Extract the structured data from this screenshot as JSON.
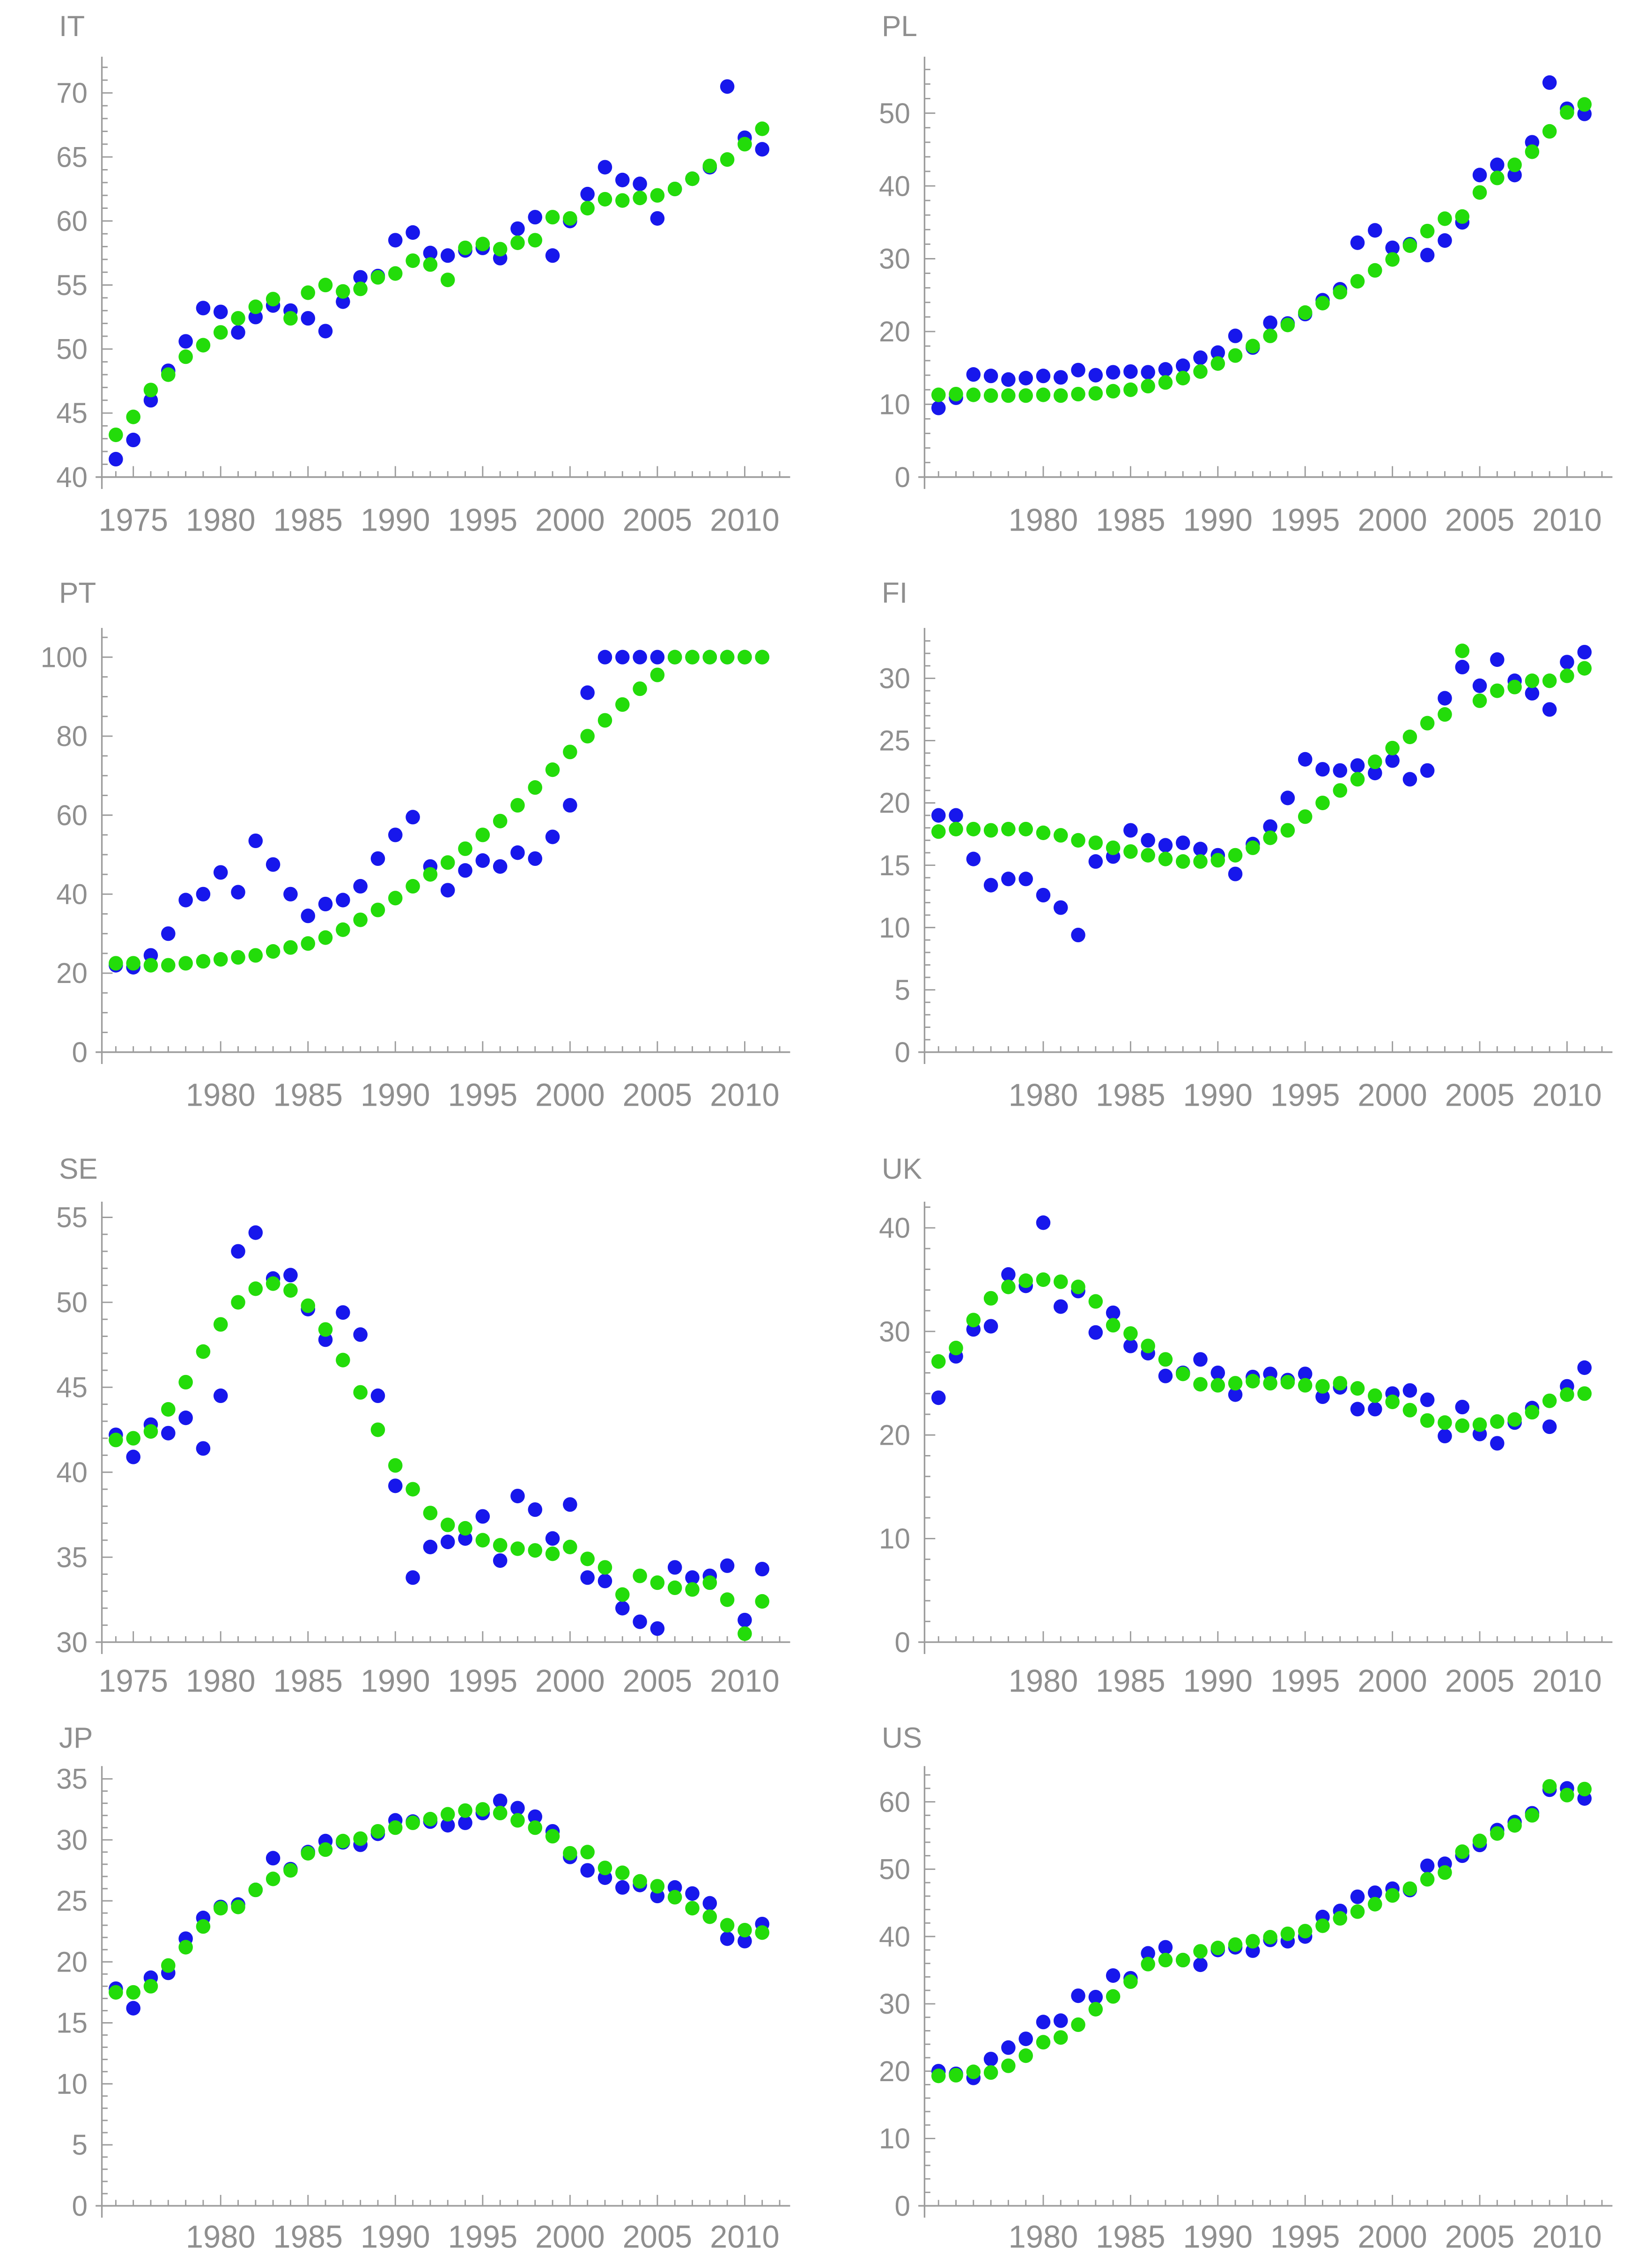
{
  "page": {
    "background": "#ffffff",
    "grid": "2x4 small-multiple scatter plots"
  },
  "colors": {
    "series_blue": "#1717ec",
    "series_green": "#23dc0a",
    "axis_line": "#9c9c9c",
    "tick_label": "#8f8f8f",
    "title": "#8f8f8f"
  },
  "x_years_start": 1974,
  "x_years_end": 2011,
  "chart_data": [
    {
      "type": "scatter",
      "title": "IT",
      "ylim": [
        40,
        72.4
      ],
      "yticks": [
        40,
        45,
        50,
        55,
        60,
        65,
        70
      ],
      "y_minor_step": 1,
      "xlim": [
        1973.2,
        2012.6
      ],
      "xtick_labels": [
        1975,
        1980,
        1985,
        1990,
        1995,
        2000,
        2005,
        2010
      ],
      "legend": "none",
      "grid_lines": "off",
      "series": [
        {
          "name": "blue",
          "color_key": "series_blue",
          "values": [
            41.4,
            42.9,
            46.0,
            48.3,
            50.6,
            53.2,
            52.9,
            51.3,
            52.5,
            53.4,
            53.0,
            52.4,
            51.4,
            53.7,
            55.6,
            55.7,
            58.5,
            59.1,
            57.5,
            57.3,
            57.7,
            57.9,
            57.1,
            59.4,
            60.3,
            57.3,
            60.0,
            62.1,
            64.2,
            63.2,
            62.9,
            60.2,
            62.5,
            63.3,
            64.2,
            70.5,
            66.5,
            65.6
          ]
        },
        {
          "name": "green",
          "color_key": "series_green",
          "values": [
            43.3,
            44.7,
            46.8,
            48.0,
            49.4,
            50.3,
            51.3,
            52.4,
            53.3,
            53.9,
            52.4,
            54.4,
            55.0,
            54.5,
            54.7,
            55.6,
            55.9,
            56.9,
            56.6,
            55.4,
            57.9,
            58.2,
            57.8,
            58.3,
            58.5,
            60.3,
            60.2,
            61.0,
            61.7,
            61.6,
            61.8,
            62.0,
            62.5,
            63.3,
            64.3,
            64.8,
            66.0,
            67.2
          ]
        }
      ]
    },
    {
      "type": "scatter",
      "title": "PL",
      "ylim": [
        0,
        57
      ],
      "yticks": [
        0,
        10,
        20,
        30,
        40,
        50
      ],
      "y_minor_step": 2,
      "xlim": [
        1973.2,
        2012.6
      ],
      "xtick_labels": [
        1980,
        1985,
        1990,
        1995,
        2000,
        2005,
        2010
      ],
      "legend": "none",
      "grid_lines": "off",
      "series": [
        {
          "name": "blue",
          "color_key": "series_blue",
          "values": [
            9.5,
            10.9,
            14.1,
            13.9,
            13.4,
            13.6,
            13.9,
            13.7,
            14.7,
            14.0,
            14.4,
            14.5,
            14.4,
            14.8,
            15.3,
            16.4,
            17.1,
            19.4,
            17.8,
            21.2,
            21.1,
            22.4,
            24.3,
            25.8,
            32.2,
            33.9,
            31.5,
            32.0,
            30.5,
            32.5,
            35.0,
            41.5,
            42.9,
            41.5,
            46.0,
            54.2,
            50.6,
            49.9
          ]
        },
        {
          "name": "green",
          "color_key": "series_green",
          "values": [
            11.3,
            11.4,
            11.3,
            11.2,
            11.2,
            11.2,
            11.3,
            11.2,
            11.4,
            11.5,
            11.8,
            12.0,
            12.5,
            13.0,
            13.6,
            14.5,
            15.6,
            16.7,
            18.0,
            19.4,
            20.9,
            22.6,
            23.9,
            25.4,
            26.9,
            28.4,
            29.9,
            31.8,
            33.8,
            35.5,
            35.8,
            39.1,
            41.1,
            42.9,
            44.7,
            47.5,
            50.1,
            51.2
          ]
        }
      ]
    },
    {
      "type": "scatter",
      "title": "PT",
      "ylim": [
        0,
        106
      ],
      "yticks": [
        0,
        20,
        40,
        60,
        80,
        100
      ],
      "y_minor_step": 5,
      "xlim": [
        1973.2,
        2012.6
      ],
      "xtick_labels": [
        1980,
        1985,
        1990,
        1995,
        2000,
        2005,
        2010
      ],
      "legend": "none",
      "grid_lines": "off",
      "series": [
        {
          "name": "blue",
          "color_key": "series_blue",
          "values": [
            22.0,
            21.5,
            24.5,
            30.0,
            38.5,
            40.0,
            45.5,
            40.5,
            53.5,
            47.5,
            40.0,
            34.5,
            37.5,
            38.5,
            42.0,
            49.0,
            55.0,
            59.5,
            47.0,
            41.0,
            46.0,
            48.5,
            47.0,
            50.5,
            49.0,
            54.5,
            62.5,
            91.0,
            100,
            100,
            100,
            100,
            100,
            100,
            100,
            100,
            100,
            100
          ]
        },
        {
          "name": "green",
          "color_key": "series_green",
          "values": [
            22.5,
            22.5,
            22.0,
            22.0,
            22.5,
            23.0,
            23.5,
            24.0,
            24.5,
            25.5,
            26.5,
            27.5,
            29.0,
            31.0,
            33.5,
            36.0,
            39.0,
            42.0,
            45.0,
            48.0,
            51.5,
            55.0,
            58.5,
            62.5,
            67.0,
            71.5,
            76.0,
            80.0,
            84.0,
            88.0,
            92.0,
            95.5,
            100,
            100,
            100,
            100,
            100,
            100
          ]
        }
      ]
    },
    {
      "type": "scatter",
      "title": "FI",
      "ylim": [
        0,
        33.6
      ],
      "yticks": [
        0,
        5,
        10,
        15,
        20,
        25,
        30
      ],
      "y_minor_step": 1,
      "xlim": [
        1973.2,
        2012.6
      ],
      "xtick_labels": [
        1980,
        1985,
        1990,
        1995,
        2000,
        2005,
        2010
      ],
      "legend": "none",
      "grid_lines": "off",
      "series": [
        {
          "name": "blue",
          "color_key": "series_blue",
          "values": [
            19.0,
            19.0,
            15.5,
            13.4,
            13.9,
            13.9,
            12.6,
            11.6,
            9.4,
            15.3,
            15.7,
            17.8,
            17.0,
            16.6,
            16.8,
            16.3,
            15.8,
            14.3,
            16.7,
            18.1,
            20.4,
            23.5,
            22.7,
            22.6,
            23.0,
            22.4,
            23.4,
            21.9,
            22.6,
            28.4,
            30.9,
            29.4,
            31.5,
            29.8,
            28.8,
            27.5,
            31.3,
            32.1
          ]
        },
        {
          "name": "green",
          "color_key": "series_green",
          "values": [
            17.7,
            17.9,
            17.9,
            17.8,
            17.9,
            17.9,
            17.6,
            17.4,
            17.0,
            16.8,
            16.4,
            16.1,
            15.8,
            15.5,
            15.3,
            15.3,
            15.4,
            15.8,
            16.4,
            17.2,
            17.8,
            18.9,
            20.0,
            21.0,
            21.9,
            23.3,
            24.4,
            25.3,
            26.4,
            27.1,
            32.2,
            28.2,
            29.0,
            29.3,
            29.8,
            29.8,
            30.2,
            30.8
          ]
        }
      ]
    },
    {
      "type": "scatter",
      "title": "SE",
      "ylim": [
        30,
        55.6
      ],
      "yticks": [
        30,
        35,
        40,
        45,
        50,
        55
      ],
      "y_minor_step": 1,
      "xlim": [
        1973.2,
        2012.6
      ],
      "xtick_labels": [
        1975,
        1980,
        1985,
        1990,
        1995,
        2000,
        2005,
        2010
      ],
      "legend": "none",
      "grid_lines": "off",
      "series": [
        {
          "name": "blue",
          "color_key": "series_blue",
          "values": [
            42.2,
            40.9,
            42.8,
            42.3,
            43.2,
            41.4,
            44.5,
            53.0,
            54.1,
            51.4,
            51.6,
            49.6,
            47.8,
            49.4,
            48.1,
            44.5,
            39.2,
            33.8,
            35.6,
            35.9,
            36.1,
            37.4,
            34.8,
            38.6,
            37.8,
            36.1,
            38.1,
            33.8,
            33.6,
            32.0,
            31.2,
            30.8,
            34.4,
            33.8,
            33.9,
            34.5,
            31.3,
            34.3
          ]
        },
        {
          "name": "green",
          "color_key": "series_green",
          "values": [
            41.9,
            42.0,
            42.4,
            43.7,
            45.3,
            47.1,
            48.7,
            50.0,
            50.8,
            51.1,
            50.7,
            49.8,
            48.4,
            46.6,
            44.7,
            42.5,
            40.4,
            39.0,
            37.6,
            36.9,
            36.7,
            36.0,
            35.7,
            35.5,
            35.4,
            35.2,
            35.6,
            34.9,
            34.4,
            32.8,
            33.9,
            33.5,
            33.2,
            33.1,
            33.5,
            32.5,
            30.5,
            32.4
          ]
        }
      ]
    },
    {
      "type": "scatter",
      "title": "UK",
      "ylim": [
        0,
        42
      ],
      "yticks": [
        0,
        10,
        20,
        30,
        40
      ],
      "y_minor_step": 2,
      "xlim": [
        1973.2,
        2012.6
      ],
      "xtick_labels": [
        1980,
        1985,
        1990,
        1995,
        2000,
        2005,
        2010
      ],
      "legend": "none",
      "grid_lines": "off",
      "series": [
        {
          "name": "blue",
          "color_key": "series_blue",
          "values": [
            23.6,
            27.6,
            30.2,
            30.5,
            35.5,
            34.4,
            40.5,
            32.4,
            33.9,
            29.9,
            31.8,
            28.6,
            27.9,
            25.7,
            26.0,
            27.3,
            26.0,
            23.9,
            25.6,
            25.9,
            25.3,
            25.9,
            23.7,
            24.6,
            22.5,
            22.5,
            24.0,
            24.3,
            23.4,
            19.9,
            22.7,
            20.1,
            19.2,
            21.2,
            22.6,
            20.8,
            24.7,
            26.5
          ]
        },
        {
          "name": "green",
          "color_key": "series_green",
          "values": [
            27.1,
            28.4,
            31.1,
            33.2,
            34.3,
            34.9,
            35.0,
            34.8,
            34.3,
            32.9,
            30.6,
            29.8,
            28.6,
            27.3,
            25.9,
            24.9,
            24.8,
            25.0,
            25.2,
            25.0,
            25.1,
            24.8,
            24.7,
            25.0,
            24.5,
            23.8,
            23.2,
            22.4,
            21.4,
            21.2,
            20.9,
            21.0,
            21.3,
            21.5,
            22.2,
            23.3,
            23.9,
            24.0
          ]
        }
      ]
    },
    {
      "type": "scatter",
      "title": "JP",
      "ylim": [
        0,
        35.6
      ],
      "yticks": [
        0,
        5,
        10,
        15,
        20,
        25,
        30,
        35
      ],
      "y_minor_step": 1,
      "xlim": [
        1973.2,
        2012.6
      ],
      "xtick_labels": [
        1980,
        1985,
        1990,
        1995,
        2000,
        2005,
        2010
      ],
      "legend": "none",
      "grid_lines": "off",
      "series": [
        {
          "name": "blue",
          "color_key": "series_blue",
          "values": [
            17.8,
            16.2,
            18.7,
            19.1,
            21.9,
            23.6,
            24.5,
            24.7,
            25.9,
            28.5,
            27.6,
            29.0,
            29.9,
            29.8,
            29.6,
            30.5,
            31.6,
            31.5,
            31.5,
            31.2,
            31.4,
            32.2,
            33.2,
            32.6,
            31.9,
            30.7,
            28.6,
            27.5,
            26.9,
            26.1,
            26.3,
            25.4,
            26.1,
            25.6,
            24.8,
            21.9,
            21.7,
            23.1
          ]
        },
        {
          "name": "green",
          "color_key": "series_green",
          "values": [
            17.5,
            17.5,
            18.0,
            19.7,
            21.2,
            22.9,
            24.4,
            24.5,
            25.9,
            26.8,
            27.5,
            28.9,
            29.2,
            29.9,
            30.1,
            30.7,
            31.0,
            31.4,
            31.7,
            32.1,
            32.4,
            32.5,
            32.2,
            31.6,
            31.0,
            30.3,
            28.9,
            29.0,
            27.7,
            27.3,
            26.6,
            26.2,
            25.3,
            24.4,
            23.7,
            23.0,
            22.6,
            22.4
          ]
        }
      ]
    },
    {
      "type": "scatter",
      "title": "US",
      "ylim": [
        0,
        64.5
      ],
      "yticks": [
        0,
        10,
        20,
        30,
        40,
        50,
        60
      ],
      "y_minor_step": 2,
      "xlim": [
        1973.2,
        2012.6
      ],
      "xtick_labels": [
        1980,
        1985,
        1990,
        1995,
        2000,
        2005,
        2010
      ],
      "legend": "none",
      "grid_lines": "off",
      "series": [
        {
          "name": "blue",
          "color_key": "series_blue",
          "values": [
            20.0,
            19.6,
            19.0,
            21.8,
            23.5,
            24.8,
            27.3,
            27.5,
            31.2,
            31.0,
            34.2,
            33.8,
            37.5,
            38.4,
            36.5,
            35.8,
            38.0,
            38.4,
            37.9,
            39.5,
            39.3,
            40.0,
            42.9,
            43.8,
            45.9,
            46.5,
            47.1,
            46.9,
            50.5,
            50.8,
            52.0,
            53.6,
            55.8,
            57.0,
            58.3,
            61.8,
            62.0,
            60.5
          ]
        },
        {
          "name": "green",
          "color_key": "series_green",
          "values": [
            19.3,
            19.4,
            19.9,
            19.8,
            20.8,
            22.3,
            24.3,
            25.0,
            26.9,
            29.2,
            31.1,
            33.3,
            35.9,
            36.5,
            36.5,
            37.8,
            38.3,
            38.8,
            39.3,
            39.9,
            40.4,
            40.8,
            41.6,
            42.7,
            43.7,
            44.8,
            46.1,
            47.1,
            48.5,
            49.5,
            52.6,
            54.2,
            55.3,
            56.5,
            58.0,
            62.3,
            61.0,
            61.9
          ]
        }
      ]
    }
  ]
}
